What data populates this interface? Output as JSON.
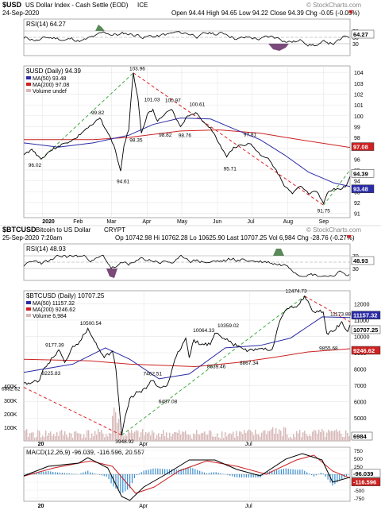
{
  "colors": {
    "price": "#000000",
    "ma50": "#2b2ba6",
    "ma200": "#cc2222",
    "trend_green": "#44aa44",
    "trend_red": "#dd2222",
    "rsi_fill_over": "#5a8a5a",
    "rsi_fill_under": "#7a4a7a",
    "volume": "#d8b8b8",
    "macd_hist": "#3a8fd0",
    "axis_box_ma200": "#cc2222",
    "axis_box_ma50": "#2b2ba6"
  },
  "usd": {
    "header": {
      "symbol": "$USD",
      "name": "US Dollar Index - Cash Settle (EOD)",
      "exchange": "ICE",
      "date": "24-Sep-2020",
      "ohlc_text": "Open 94.44  High 94.65  Low 94.22  Close 94.39  Chg -0.05 (-0.05%)",
      "change_icon": "down-triangle-icon",
      "watermark": "© StockCharts.com"
    },
    "rsi": {
      "label": "RSI(14) 64.27",
      "last_label": "64.27",
      "ticks": [
        "70",
        "50",
        "30"
      ]
    },
    "legend": {
      "title": "$USD (Daily) 94.39",
      "ma50": "MA(50) 93.48",
      "ma200": "MA(200) 97.08",
      "volume": "Volume undef"
    },
    "y_ticks": [
      "104",
      "103",
      "102",
      "101",
      "100",
      "99",
      "98",
      "97",
      "96",
      "95",
      "94",
      "93",
      "92",
      "91"
    ],
    "right_boxes": [
      "97.08",
      "94.39",
      "93.48"
    ],
    "x_labels": [
      "2020",
      "Feb",
      "Mar",
      "Apr",
      "May",
      "Jun",
      "Jul",
      "Aug",
      "Sep"
    ],
    "annotations": [
      "96.02",
      "99.82",
      "103.96",
      "101.03",
      "100.97",
      "100.61",
      "98.35",
      "98.82",
      "98.76",
      "94.61",
      "97.81",
      "95.71",
      "91.75"
    ],
    "chart_data": {
      "type": "line",
      "title": "$USD (Daily) 94.39",
      "ylim": [
        90.6,
        104.6
      ],
      "x_range": [
        "2019-12-16",
        "2020-09-24"
      ],
      "series": [
        {
          "name": "$USD",
          "points": [
            [
              "2019-12-16",
              96.4
            ],
            [
              "2019-12-23",
              96.9
            ],
            [
              "2019-12-31",
              96.0
            ],
            [
              "2020-01-07",
              96.7
            ],
            [
              "2020-01-15",
              97.2
            ],
            [
              "2020-01-22",
              97.5
            ],
            [
              "2020-01-30",
              97.9
            ],
            [
              "2020-02-07",
              98.7
            ],
            [
              "2020-02-14",
              99.2
            ],
            [
              "2020-02-20",
              99.8
            ],
            [
              "2020-02-27",
              98.4
            ],
            [
              "2020-03-03",
              97.3
            ],
            [
              "2020-03-09",
              94.9
            ],
            [
              "2020-03-12",
              97.3
            ],
            [
              "2020-03-16",
              98.7
            ],
            [
              "2020-03-19",
              102.8
            ],
            [
              "2020-03-20",
              103.96
            ],
            [
              "2020-03-24",
              101.6
            ],
            [
              "2020-03-27",
              98.4
            ],
            [
              "2020-04-01",
              100.1
            ],
            [
              "2020-04-06",
              100.6
            ],
            [
              "2020-04-10",
              99.5
            ],
            [
              "2020-04-16",
              100.1
            ],
            [
              "2020-04-22",
              100.6
            ],
            [
              "2020-04-30",
              99.0
            ],
            [
              "2020-05-06",
              100.0
            ],
            [
              "2020-05-13",
              100.3
            ],
            [
              "2020-05-20",
              99.4
            ],
            [
              "2020-05-26",
              98.9
            ],
            [
              "2020-06-02",
              97.5
            ],
            [
              "2020-06-09",
              96.2
            ],
            [
              "2020-06-15",
              97.1
            ],
            [
              "2020-06-22",
              97.3
            ],
            [
              "2020-06-30",
              97.4
            ],
            [
              "2020-07-08",
              96.4
            ],
            [
              "2020-07-15",
              96.1
            ],
            [
              "2020-07-22",
              95.0
            ],
            [
              "2020-07-29",
              93.5
            ],
            [
              "2020-08-05",
              92.8
            ],
            [
              "2020-08-12",
              93.5
            ],
            [
              "2020-08-19",
              92.8
            ],
            [
              "2020-08-26",
              93.0
            ],
            [
              "2020-09-01",
              91.9
            ],
            [
              "2020-09-04",
              92.8
            ],
            [
              "2020-09-10",
              93.3
            ],
            [
              "2020-09-16",
              93.2
            ],
            [
              "2020-09-21",
              93.6
            ],
            [
              "2020-09-24",
              94.39
            ]
          ]
        },
        {
          "name": "MA(50)",
          "points": [
            [
              "2019-12-16",
              97.5
            ],
            [
              "2020-01-15",
              97.1
            ],
            [
              "2020-02-14",
              97.5
            ],
            [
              "2020-03-16",
              98.2
            ],
            [
              "2020-04-06",
              99.2
            ],
            [
              "2020-04-30",
              99.8
            ],
            [
              "2020-05-26",
              99.7
            ],
            [
              "2020-06-15",
              98.8
            ],
            [
              "2020-07-08",
              97.8
            ],
            [
              "2020-07-29",
              96.4
            ],
            [
              "2020-08-19",
              94.8
            ],
            [
              "2020-09-10",
              93.8
            ],
            [
              "2020-09-24",
              93.48
            ]
          ]
        },
        {
          "name": "MA(200)",
          "points": [
            [
              "2019-12-16",
              97.8
            ],
            [
              "2020-02-14",
              97.8
            ],
            [
              "2020-03-16",
              98.0
            ],
            [
              "2020-04-30",
              98.6
            ],
            [
              "2020-06-02",
              98.7
            ],
            [
              "2020-07-08",
              98.4
            ],
            [
              "2020-08-05",
              97.9
            ],
            [
              "2020-09-24",
              97.08
            ]
          ]
        }
      ],
      "trendlines": [
        {
          "color": "trend_green",
          "from": [
            "2019-12-31",
            96.0
          ],
          "to": [
            "2020-03-20",
            103.96
          ]
        },
        {
          "color": "trend_red",
          "from": [
            "2020-03-20",
            103.96
          ],
          "to": [
            "2020-09-01",
            91.75
          ]
        },
        {
          "color": "trend_green",
          "from": [
            "2020-09-01",
            91.75
          ],
          "to": [
            "2020-09-24",
            95.0
          ]
        }
      ]
    }
  },
  "btc": {
    "header": {
      "symbol": "$BTCUSD",
      "name": "Bitcoin to US Dollar",
      "exchange": "CRYPT",
      "date": "25-Sep-2020 7:20am",
      "ohlc_text": "Op 10742.98  Hi 10762.28  Lo 10625.90  Last 10707.25  Vol 6,984  Chg -28.76 (-0.27%)",
      "change_icon": "down-triangle-icon",
      "watermark": "© StockCharts.com"
    },
    "rsi": {
      "label": "RSI(14) 48.93",
      "last_label": "48.93",
      "ticks": [
        "70",
        "50",
        "30"
      ]
    },
    "legend": {
      "title": "$BTCUSD (Daily) 10707.25",
      "ma50": "MA(50) 11157.32",
      "ma200": "MA(200) 9246.62",
      "volume": "Volume 6,984"
    },
    "y_ticks": [
      "12000",
      "11000",
      "10000",
      "9000",
      "8000",
      "7000",
      "6000",
      "5000",
      "4000"
    ],
    "volume_ticks": [
      "400K",
      "300K",
      "200K",
      "100K"
    ],
    "right_boxes": [
      "11157.32",
      "10707.25",
      "9246.62",
      "6984"
    ],
    "x_labels": [
      "20",
      "Apr",
      "Jul"
    ],
    "annotations": [
      "6882.62",
      "9177.39",
      "8225.83",
      "10500.54",
      "7462.51",
      "6487.08",
      "10064.33",
      "10359.02",
      "8639.46",
      "8867.34",
      "12474.73",
      "11173.88",
      "9855.68",
      "3948.92"
    ],
    "chart_data": {
      "type": "line",
      "title": "$BTCUSD (Daily) 10707.25",
      "ylim": [
        3600,
        12800
      ],
      "x_range": [
        "2019-12-20",
        "2020-09-25"
      ],
      "series": [
        {
          "name": "$BTCUSD",
          "points": [
            [
              "2019-12-20",
              7150
            ],
            [
              "2020-01-01",
              7200
            ],
            [
              "2020-01-07",
              8100
            ],
            [
              "2020-01-14",
              8700
            ],
            [
              "2020-01-19",
              9177.39
            ],
            [
              "2020-01-24",
              8400
            ],
            [
              "2020-01-31",
              9400
            ],
            [
              "2020-02-06",
              9700
            ],
            [
              "2020-02-13",
              10500.54
            ],
            [
              "2020-02-20",
              9600
            ],
            [
              "2020-02-27",
              8700
            ],
            [
              "2020-03-05",
              9100
            ],
            [
              "2020-03-08",
              8000
            ],
            [
              "2020-03-12",
              4800
            ],
            [
              "2020-03-13",
              3948.92
            ],
            [
              "2020-03-16",
              5100
            ],
            [
              "2020-03-20",
              6200
            ],
            [
              "2020-03-27",
              6600
            ],
            [
              "2020-04-03",
              6800
            ],
            [
              "2020-04-08",
              7300
            ],
            [
              "2020-04-14",
              6900
            ],
            [
              "2020-04-21",
              7000
            ],
            [
              "2020-04-29",
              8800
            ],
            [
              "2020-05-07",
              9900
            ],
            [
              "2020-05-10",
              8700
            ],
            [
              "2020-05-14",
              9800
            ],
            [
              "2020-05-20",
              9500
            ],
            [
              "2020-05-28",
              9500
            ],
            [
              "2020-06-01",
              10200
            ],
            [
              "2020-06-10",
              9800
            ],
            [
              "2020-06-20",
              9400
            ],
            [
              "2020-06-30",
              9150
            ],
            [
              "2020-07-10",
              9250
            ],
            [
              "2020-07-20",
              9200
            ],
            [
              "2020-07-27",
              11000
            ],
            [
              "2020-08-02",
              11700
            ],
            [
              "2020-08-10",
              11800
            ],
            [
              "2020-08-17",
              12474.73
            ],
            [
              "2020-08-25",
              11500
            ],
            [
              "2020-09-02",
              11500
            ],
            [
              "2020-09-05",
              10200
            ],
            [
              "2020-09-10",
              10300
            ],
            [
              "2020-09-18",
              10900
            ],
            [
              "2020-09-23",
              10300
            ],
            [
              "2020-09-25",
              10707.25
            ]
          ]
        },
        {
          "name": "MA(50)",
          "points": [
            [
              "2019-12-20",
              7800
            ],
            [
              "2020-01-31",
              8300
            ],
            [
              "2020-02-28",
              9300
            ],
            [
              "2020-03-20",
              8600
            ],
            [
              "2020-04-14",
              7400
            ],
            [
              "2020-05-10",
              7700
            ],
            [
              "2020-06-10",
              9300
            ],
            [
              "2020-07-10",
              9450
            ],
            [
              "2020-08-05",
              9900
            ],
            [
              "2020-09-01",
              11200
            ],
            [
              "2020-09-25",
              11157.32
            ]
          ]
        },
        {
          "name": "MA(200)",
          "points": [
            [
              "2019-12-20",
              8600
            ],
            [
              "2020-02-15",
              8500
            ],
            [
              "2020-03-20",
              8300
            ],
            [
              "2020-05-15",
              8150
            ],
            [
              "2020-06-20",
              8400
            ],
            [
              "2020-07-20",
              8700
            ],
            [
              "2020-08-20",
              9050
            ],
            [
              "2020-09-25",
              9246.62
            ]
          ]
        }
      ],
      "trendlines": [
        {
          "color": "trend_red",
          "from": [
            "2019-12-20",
            6882.62
          ],
          "to": [
            "2020-03-13",
            3948.92
          ]
        },
        {
          "color": "trend_green",
          "from": [
            "2020-03-13",
            3948.92
          ],
          "to": [
            "2020-08-17",
            12474.73
          ]
        },
        {
          "color": "trend_red",
          "from": [
            "2020-08-17",
            12474.73
          ],
          "to": [
            "2020-09-25",
            10900
          ]
        }
      ]
    }
  },
  "macd": {
    "label": "MACD(12,26,9) -96.039, -116.596, 20.557",
    "ticks": [
      "750",
      "500",
      "250",
      "0",
      "-250",
      "-500",
      "-750"
    ],
    "right_boxes": [
      "-96.039",
      "-116.596"
    ],
    "x_labels": [
      "20",
      "Apr",
      "Jul"
    ],
    "chart_data": {
      "type": "line",
      "ylim": [
        -850,
        850
      ],
      "x_range": [
        "2019-12-20",
        "2020-09-25"
      ],
      "series": [
        {
          "name": "MACD",
          "points": [
            [
              "2019-12-20",
              -50
            ],
            [
              "2020-01-10",
              250
            ],
            [
              "2020-02-05",
              350
            ],
            [
              "2020-02-13",
              520
            ],
            [
              "2020-03-01",
              200
            ],
            [
              "2020-03-13",
              -700
            ],
            [
              "2020-03-20",
              -820
            ],
            [
              "2020-04-01",
              -400
            ],
            [
              "2020-04-20",
              0
            ],
            [
              "2020-05-10",
              450
            ],
            [
              "2020-06-01",
              450
            ],
            [
              "2020-06-20",
              150
            ],
            [
              "2020-07-10",
              -50
            ],
            [
              "2020-08-01",
              480
            ],
            [
              "2020-08-15",
              650
            ],
            [
              "2020-09-01",
              450
            ],
            [
              "2020-09-10",
              -250
            ],
            [
              "2020-09-25",
              -96.039
            ]
          ]
        },
        {
          "name": "Signal",
          "points": [
            [
              "2019-12-20",
              -60
            ],
            [
              "2020-01-15",
              200
            ],
            [
              "2020-02-15",
              420
            ],
            [
              "2020-03-05",
              250
            ],
            [
              "2020-03-25",
              -600
            ],
            [
              "2020-04-10",
              -400
            ],
            [
              "2020-05-01",
              100
            ],
            [
              "2020-05-25",
              420
            ],
            [
              "2020-06-20",
              250
            ],
            [
              "2020-07-15",
              0
            ],
            [
              "2020-08-10",
              450
            ],
            [
              "2020-08-25",
              600
            ],
            [
              "2020-09-10",
              100
            ],
            [
              "2020-09-25",
              -116.596
            ]
          ]
        }
      ]
    }
  }
}
